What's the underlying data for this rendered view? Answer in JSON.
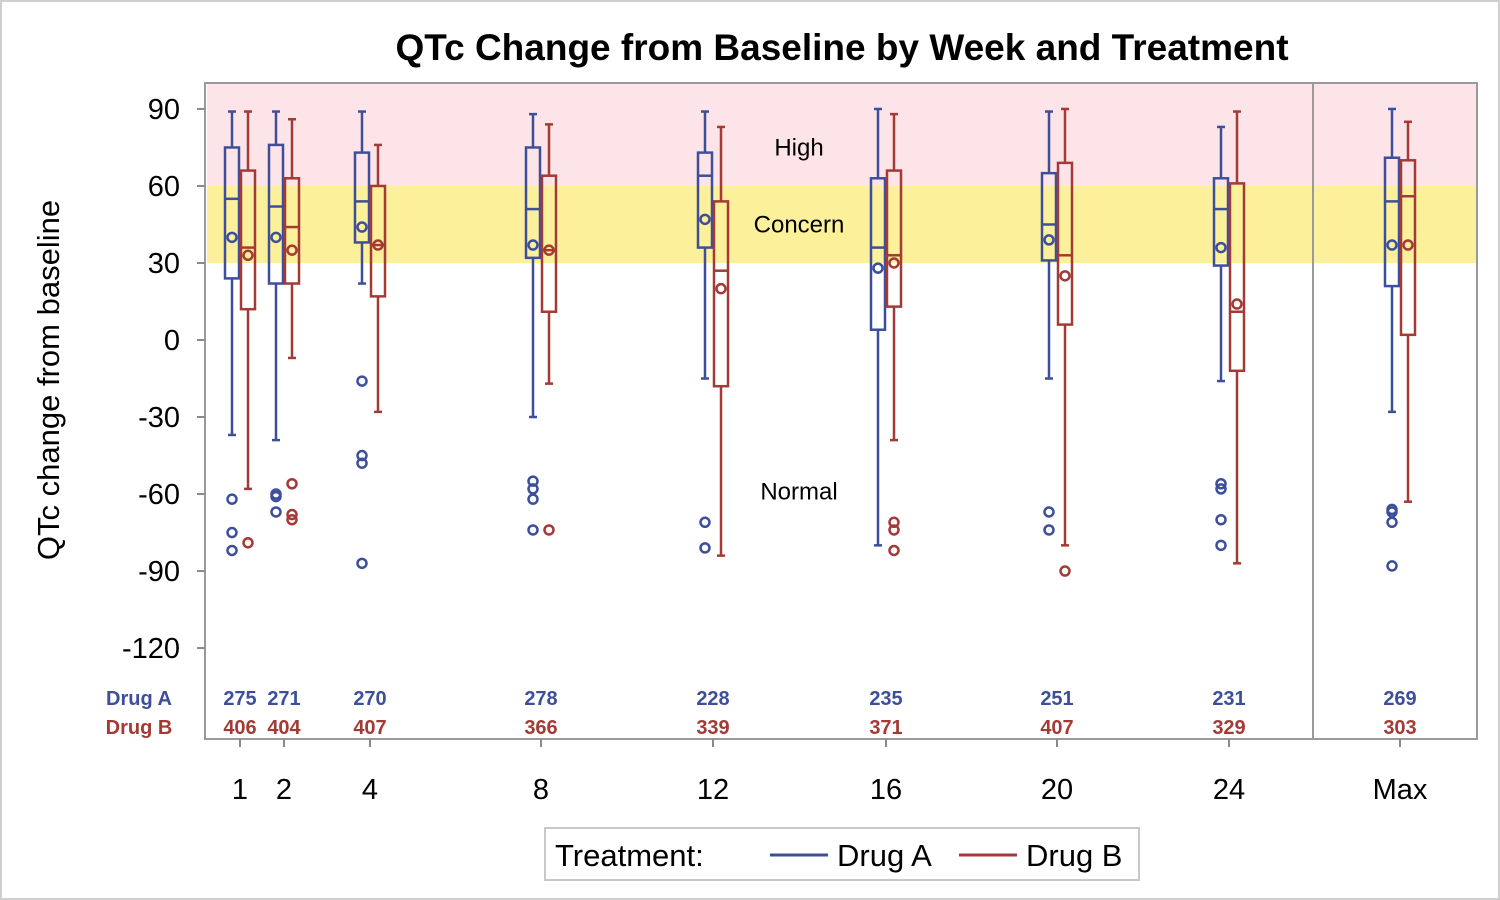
{
  "chart_data": {
    "type": "box",
    "title": "QTc Change from Baseline by Week and Treatment",
    "ylabel": "QTc change from baseline",
    "xlabel": "",
    "ylim": [
      -135,
      100
    ],
    "yticks": [
      -120,
      -90,
      -60,
      -30,
      0,
      30,
      60,
      90
    ],
    "categories": [
      "1",
      "2",
      "4",
      "8",
      "12",
      "16",
      "20",
      "24",
      "Max"
    ],
    "bands": [
      {
        "label": "High",
        "from": 60,
        "to": 100,
        "color": "#fde4e8",
        "label_y": 75
      },
      {
        "label": "Concern",
        "from": 30,
        "to": 60,
        "color": "#fdf09a",
        "label_y": 45
      },
      {
        "label": "Normal",
        "from": -135,
        "to": 30,
        "color": "#ffffff",
        "label_y": -59
      }
    ],
    "legend": {
      "title": "Treatment:",
      "position": "bottom"
    },
    "series": [
      {
        "name": "Drug A",
        "color": "#3d4f9a",
        "counts": [
          "275",
          "271",
          "270",
          "278",
          "228",
          "235",
          "251",
          "231",
          "269"
        ],
        "boxes": [
          {
            "min": -37,
            "q1": 24,
            "median": 55,
            "q3": 75,
            "max": 89,
            "mean": 40,
            "outliers": [
              -62,
              -75,
              -82
            ]
          },
          {
            "min": -39,
            "q1": 22,
            "median": 52,
            "q3": 76,
            "max": 89,
            "mean": 40,
            "outliers": [
              -60,
              -61,
              -67
            ]
          },
          {
            "min": 22,
            "q1": 38,
            "median": 54,
            "q3": 73,
            "max": 89,
            "mean": 44,
            "outliers": [
              -16,
              -45,
              -48,
              -87
            ]
          },
          {
            "min": -30,
            "q1": 32,
            "median": 51,
            "q3": 75,
            "max": 88,
            "mean": 37,
            "outliers": [
              -55,
              -58,
              -62,
              -74
            ]
          },
          {
            "min": -15,
            "q1": 36,
            "median": 64,
            "q3": 73,
            "max": 89,
            "mean": 47,
            "outliers": [
              -71,
              -81
            ]
          },
          {
            "min": -80,
            "q1": 4,
            "median": 36,
            "q3": 63,
            "max": 90,
            "mean": 28,
            "outliers": []
          },
          {
            "min": -15,
            "q1": 31,
            "median": 45,
            "q3": 65,
            "max": 89,
            "mean": 39,
            "outliers": [
              -67,
              -74
            ]
          },
          {
            "min": -16,
            "q1": 29,
            "median": 51,
            "q3": 63,
            "max": 83,
            "mean": 36,
            "outliers": [
              -56,
              -58,
              -70,
              -80
            ]
          },
          {
            "min": -28,
            "q1": 21,
            "median": 54,
            "q3": 71,
            "max": 90,
            "mean": 37,
            "outliers": [
              -66,
              -67,
              -71,
              -88
            ]
          }
        ]
      },
      {
        "name": "Drug B",
        "color": "#a33a35",
        "counts": [
          "406",
          "404",
          "407",
          "366",
          "339",
          "371",
          "407",
          "329",
          "303"
        ],
        "boxes": [
          {
            "min": -58,
            "q1": 12,
            "median": 36,
            "q3": 66,
            "max": 89,
            "mean": 33,
            "outliers": [
              -79
            ]
          },
          {
            "min": -7,
            "q1": 22,
            "median": 44,
            "q3": 63,
            "max": 86,
            "mean": 35,
            "outliers": [
              -56,
              -68,
              -70
            ]
          },
          {
            "min": -28,
            "q1": 17,
            "median": 37,
            "q3": 60,
            "max": 76,
            "mean": 37,
            "outliers": []
          },
          {
            "min": -17,
            "q1": 11,
            "median": 35,
            "q3": 64,
            "max": 84,
            "mean": 35,
            "outliers": [
              -74
            ]
          },
          {
            "min": -84,
            "q1": -18,
            "median": 27,
            "q3": 54,
            "max": 83,
            "mean": 20,
            "outliers": []
          },
          {
            "min": -39,
            "q1": 13,
            "median": 33,
            "q3": 66,
            "max": 88,
            "mean": 30,
            "outliers": [
              -71,
              -74,
              -82
            ]
          },
          {
            "min": -80,
            "q1": 6,
            "median": 33,
            "q3": 69,
            "max": 90,
            "mean": 25,
            "outliers": [
              -90
            ]
          },
          {
            "min": -87,
            "q1": -12,
            "median": 11,
            "q3": 61,
            "max": 89,
            "mean": 14,
            "outliers": []
          },
          {
            "min": -63,
            "q1": 2,
            "median": 56,
            "q3": 70,
            "max": 85,
            "mean": 37,
            "outliers": []
          }
        ]
      }
    ]
  }
}
